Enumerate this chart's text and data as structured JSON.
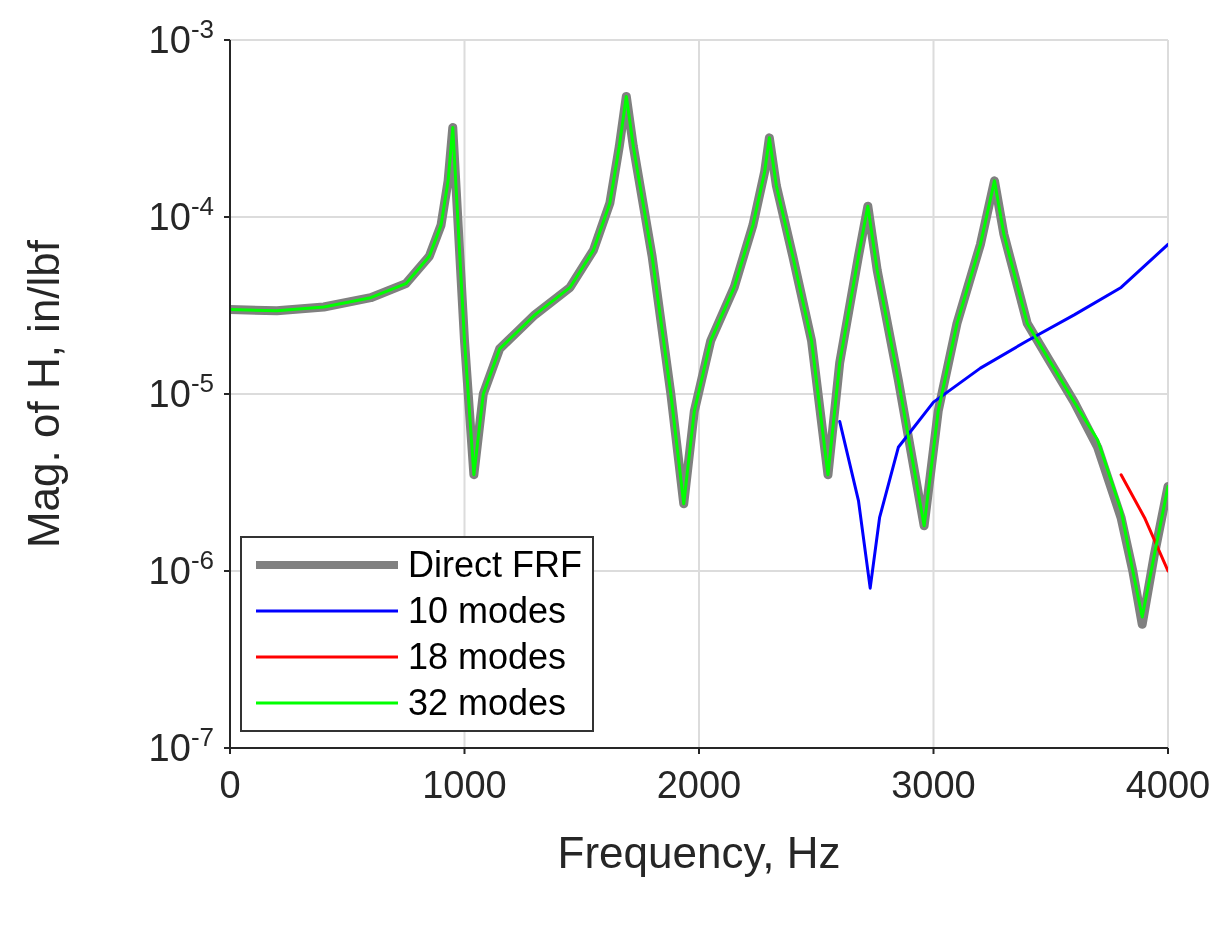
{
  "chart_data": {
    "type": "line",
    "xlabel": "Frequency, Hz",
    "ylabel": "Mag. of H, in/lbf",
    "log": "y",
    "grid": true,
    "legend": "bottom left",
    "marker": "none",
    "line_style": "solid",
    "xlim": [
      0,
      4000
    ],
    "xticks": [
      0,
      1000,
      2000,
      3000,
      4000
    ],
    "ylim": [
      1e-07,
      0.001
    ],
    "yticks": [
      {
        "value": 1e-07,
        "label": "10$^{-7}$"
      },
      {
        "value": 1e-06,
        "label": "10$^{-6}$"
      },
      {
        "value": 1e-05,
        "label": "10$^{-5}$"
      },
      {
        "value": 0.0001,
        "label": "10$^{-4}$"
      },
      {
        "value": 0.001,
        "label": "10$^{-3}$"
      }
    ],
    "series": [
      {
        "name": "Direct FRF",
        "color": "#808080",
        "x": [
          0,
          200,
          400,
          600,
          750,
          850,
          900,
          930,
          950,
          1000,
          1040,
          1080,
          1150,
          1300,
          1450,
          1550,
          1620,
          1660,
          1690,
          1720,
          1800,
          1880,
          1935,
          1980,
          2050,
          2150,
          2230,
          2280,
          2300,
          2330,
          2400,
          2480,
          2550,
          2600,
          2680,
          2720,
          2760,
          2850,
          2960,
          3020,
          3100,
          3200,
          3260,
          3300,
          3400,
          3500,
          3600,
          3700,
          3800,
          3850,
          3890,
          3940,
          4000
        ],
        "values": [
          3e-05,
          2.95e-05,
          3.1e-05,
          3.5e-05,
          4.2e-05,
          6e-05,
          9e-05,
          0.00016,
          0.00032,
          2e-05,
          3.5e-06,
          1e-05,
          1.8e-05,
          2.8e-05,
          4e-05,
          6.5e-05,
          0.00012,
          0.00025,
          0.00048,
          0.00025,
          6e-05,
          1e-05,
          2.4e-06,
          8e-06,
          2e-05,
          4e-05,
          9e-05,
          0.00018,
          0.00028,
          0.00015,
          6e-05,
          2e-05,
          3.5e-06,
          1.5e-05,
          6e-05,
          0.000115,
          5e-05,
          1.2e-05,
          1.8e-06,
          8e-06,
          2.5e-05,
          7e-05,
          0.00016,
          8e-05,
          2.5e-05,
          1.5e-05,
          9e-06,
          5e-06,
          2e-06,
          1e-06,
          5e-07,
          1.2e-06,
          3e-06
        ]
      },
      {
        "name": "10 modes",
        "color": "#0000ff",
        "x": [
          2600,
          2680,
          2730,
          2770,
          2850,
          3000,
          3200,
          3400,
          3600,
          3800,
          4000
        ],
        "values": [
          7e-06,
          2.5e-06,
          8e-07,
          2e-06,
          5e-06,
          9e-06,
          1.4e-05,
          2e-05,
          2.8e-05,
          4e-05,
          7e-05
        ]
      },
      {
        "name": "18 modes",
        "color": "#ff0000",
        "x": [
          3800,
          3900,
          4000
        ],
        "values": [
          3.5e-06,
          2e-06,
          1e-06
        ]
      },
      {
        "name": "32 modes",
        "color": "#00ff00",
        "x": [
          0,
          200,
          400,
          600,
          750,
          850,
          900,
          930,
          950,
          1000,
          1040,
          1080,
          1150,
          1300,
          1450,
          1550,
          1620,
          1660,
          1690,
          1720,
          1800,
          1880,
          1935,
          1980,
          2050,
          2150,
          2230,
          2280,
          2300,
          2330,
          2400,
          2480,
          2550,
          2600,
          2680,
          2720,
          2760,
          2850,
          2960,
          3020,
          3100,
          3200,
          3260,
          3300,
          3400,
          3500,
          3600,
          3700,
          3800,
          3850,
          3890,
          3940,
          4000
        ],
        "values": [
          3e-05,
          2.95e-05,
          3.1e-05,
          3.5e-05,
          4.2e-05,
          6e-05,
          9e-05,
          0.00016,
          0.00032,
          2e-05,
          3.5e-06,
          1e-05,
          1.8e-05,
          2.8e-05,
          4e-05,
          6.5e-05,
          0.00012,
          0.00025,
          0.00048,
          0.00025,
          6e-05,
          1e-05,
          2.4e-06,
          8e-06,
          2e-05,
          4e-05,
          9e-05,
          0.00018,
          0.00028,
          0.00015,
          6e-05,
          2e-05,
          3.5e-06,
          1.5e-05,
          6e-05,
          0.000115,
          5e-05,
          1.2e-05,
          1.8e-06,
          8e-06,
          2.5e-05,
          7e-05,
          0.00016,
          8e-05,
          2.5e-05,
          1.5e-05,
          9e-06,
          5.5e-06,
          2.2e-06,
          1e-06,
          5.5e-07,
          1.2e-06,
          3e-06
        ]
      }
    ]
  }
}
